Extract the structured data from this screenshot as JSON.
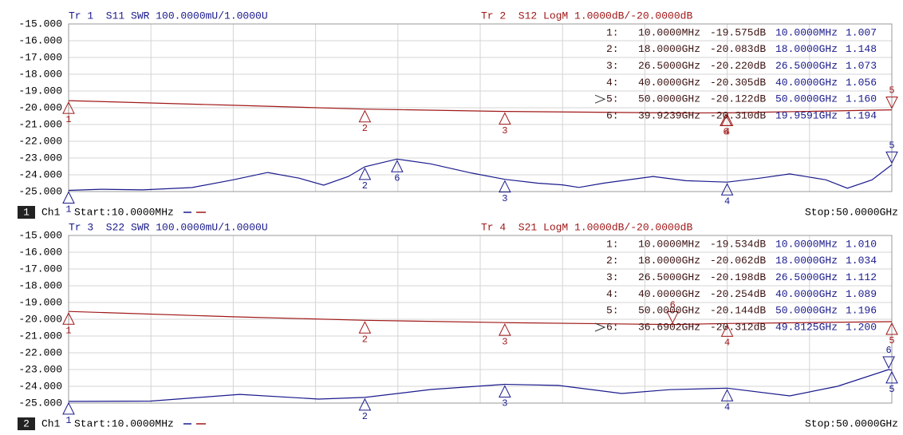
{
  "chart_data": [
    {
      "type": "line",
      "trace_left": "Tr 1  S11 SWR 100.0000mU/1.0000U",
      "trace_right": "Tr 2  S12 LogM 1.0000dB/-20.0000dB",
      "channel": "1",
      "channel_label": "Ch1",
      "start": "Start:10.0000MHz",
      "stop": "Stop:50.0000GHz",
      "xlim": [
        0.01,
        50
      ],
      "ylim": [
        -25,
        -15
      ],
      "y2lim": [
        1,
        2
      ],
      "yticks": [
        {
          "value": -15,
          "label": "-15.000"
        },
        {
          "value": -16,
          "label": "-16.000"
        },
        {
          "value": -17,
          "label": "-17.000"
        },
        {
          "value": -18,
          "label": "-18.000"
        },
        {
          "value": -19,
          "label": "-19.000"
        },
        {
          "value": -20,
          "label": "-20.000"
        },
        {
          "value": -21,
          "label": "-21.000"
        },
        {
          "value": -22,
          "label": "-22.000"
        },
        {
          "value": -23,
          "label": "-23.000"
        },
        {
          "value": -24,
          "label": "-24.000"
        },
        {
          "value": -25,
          "label": "-25.000"
        }
      ],
      "grid": true,
      "active_marker": "5",
      "marker_rows": [
        "1:",
        "2:",
        "3:",
        "4:",
        "5:",
        "6:"
      ],
      "marker_ids": [
        "1",
        "2",
        "3",
        "4",
        "5",
        "6"
      ],
      "series": [
        {
          "color": "#a01818",
          "x": [
            0.01,
            10,
            18,
            26.5,
            36.9,
            40,
            50
          ],
          "values": [
            -19.575,
            -19.85,
            -20.083,
            -20.22,
            -20.31,
            -20.305,
            -20.122
          ],
          "markers": {
            "x": [
              0.01,
              18,
              26.5,
              40,
              50,
              39.9239
            ],
            "values": [
              -19.575,
              -20.083,
              -20.22,
              -20.305,
              -20.122,
              -20.31
            ],
            "x_labels": [
              "10.0000MHz",
              "18.0000GHz",
              "26.5000GHz",
              "40.0000GHz",
              "50.0000GHz",
              "39.9239GHz"
            ],
            "value_labels": [
              "-19.575dB",
              "-20.083dB",
              "-20.220dB",
              "-20.305dB",
              "-20.122dB",
              "-20.310dB"
            ]
          }
        },
        {
          "color": "#1a1a8c",
          "axis": "y2",
          "x": [
            0.01,
            2,
            4.5,
            7.5,
            10,
            12.1,
            14,
            15.5,
            17,
            18,
            19.95,
            22,
            24.5,
            26.5,
            28.5,
            30,
            31,
            32.5,
            35.5,
            37.5,
            40,
            42,
            43.8,
            46,
            47.3,
            48.8,
            50
          ],
          "values": [
            1.007,
            1.014,
            1.01,
            1.024,
            1.07,
            1.114,
            1.08,
            1.038,
            1.09,
            1.148,
            1.194,
            1.165,
            1.11,
            1.073,
            1.05,
            1.04,
            1.025,
            1.05,
            1.09,
            1.065,
            1.056,
            1.08,
            1.105,
            1.07,
            1.02,
            1.07,
            1.16
          ],
          "markers": {
            "x": [
              0.01,
              18,
              26.5,
              40,
              50,
              19.9591
            ],
            "values": [
              1.007,
              1.148,
              1.073,
              1.056,
              1.16,
              1.194
            ],
            "x_labels": [
              "10.0000MHz",
              "18.0000GHz",
              "26.5000GHz",
              "40.0000GHz",
              "50.0000GHz",
              "19.9591GHz"
            ],
            "value_labels": [
              "1.007",
              "1.148",
              "1.073",
              "1.056",
              "1.160",
              "1.194"
            ]
          }
        }
      ]
    },
    {
      "type": "line",
      "trace_left": "Tr 3  S22 SWR 100.0000mU/1.0000U",
      "trace_right": "Tr 4  S21 LogM 1.0000dB/-20.0000dB",
      "channel": "2",
      "channel_label": "Ch1",
      "start": "Start:10.0000MHz",
      "stop": "Stop:50.0000GHz",
      "xlim": [
        0.01,
        50
      ],
      "ylim": [
        -25,
        -15
      ],
      "y2lim": [
        1,
        2
      ],
      "yticks": [
        {
          "value": -15,
          "label": "-15.000"
        },
        {
          "value": -16,
          "label": "-16.000"
        },
        {
          "value": -17,
          "label": "-17.000"
        },
        {
          "value": -18,
          "label": "-18.000"
        },
        {
          "value": -19,
          "label": "-19.000"
        },
        {
          "value": -20,
          "label": "-20.000"
        },
        {
          "value": -21,
          "label": "-21.000"
        },
        {
          "value": -22,
          "label": "-22.000"
        },
        {
          "value": -23,
          "label": "-23.000"
        },
        {
          "value": -24,
          "label": "-24.000"
        },
        {
          "value": -25,
          "label": "-25.000"
        }
      ],
      "grid": true,
      "active_marker": "6",
      "marker_rows": [
        "1:",
        "2:",
        "3:",
        "4:",
        "5:",
        "6:"
      ],
      "marker_ids": [
        "1",
        "2",
        "3",
        "4",
        "5",
        "6"
      ],
      "series": [
        {
          "color": "#a01818",
          "x": [
            0.01,
            10,
            18,
            26.5,
            36.6902,
            40,
            50
          ],
          "values": [
            -19.534,
            -19.85,
            -20.062,
            -20.198,
            -20.312,
            -20.254,
            -20.144
          ],
          "markers": {
            "x": [
              0.01,
              18,
              26.5,
              40,
              50,
              36.6902
            ],
            "values": [
              -19.534,
              -20.062,
              -20.198,
              -20.254,
              -20.144,
              -20.312
            ],
            "x_labels": [
              "10.0000MHz",
              "18.0000GHz",
              "26.5000GHz",
              "40.0000GHz",
              "50.0000GHz",
              "36.6902GHz"
            ],
            "value_labels": [
              "-19.534dB",
              "-20.062dB",
              "-20.198dB",
              "-20.254dB",
              "-20.144dB",
              "-20.312dB"
            ]
          }
        },
        {
          "color": "#1a1a8c",
          "axis": "y2",
          "x": [
            0.01,
            5,
            10.4,
            15.2,
            18,
            22,
            26.5,
            29.75,
            33.6,
            36.5,
            40,
            43.8,
            46.7,
            49.8125,
            50
          ],
          "values": [
            1.01,
            1.012,
            1.052,
            1.024,
            1.034,
            1.081,
            1.112,
            1.105,
            1.057,
            1.08,
            1.089,
            1.043,
            1.1,
            1.2,
            1.196
          ],
          "markers": {
            "x": [
              0.01,
              18,
              26.5,
              40,
              50,
              49.8125
            ],
            "values": [
              1.01,
              1.034,
              1.112,
              1.089,
              1.196,
              1.2
            ],
            "x_labels": [
              "10.0000MHz",
              "18.0000GHz",
              "26.5000GHz",
              "40.0000GHz",
              "50.0000GHz",
              "49.8125GHz"
            ],
            "value_labels": [
              "1.010",
              "1.034",
              "1.112",
              "1.089",
              "1.196",
              "1.200"
            ]
          }
        }
      ]
    }
  ]
}
